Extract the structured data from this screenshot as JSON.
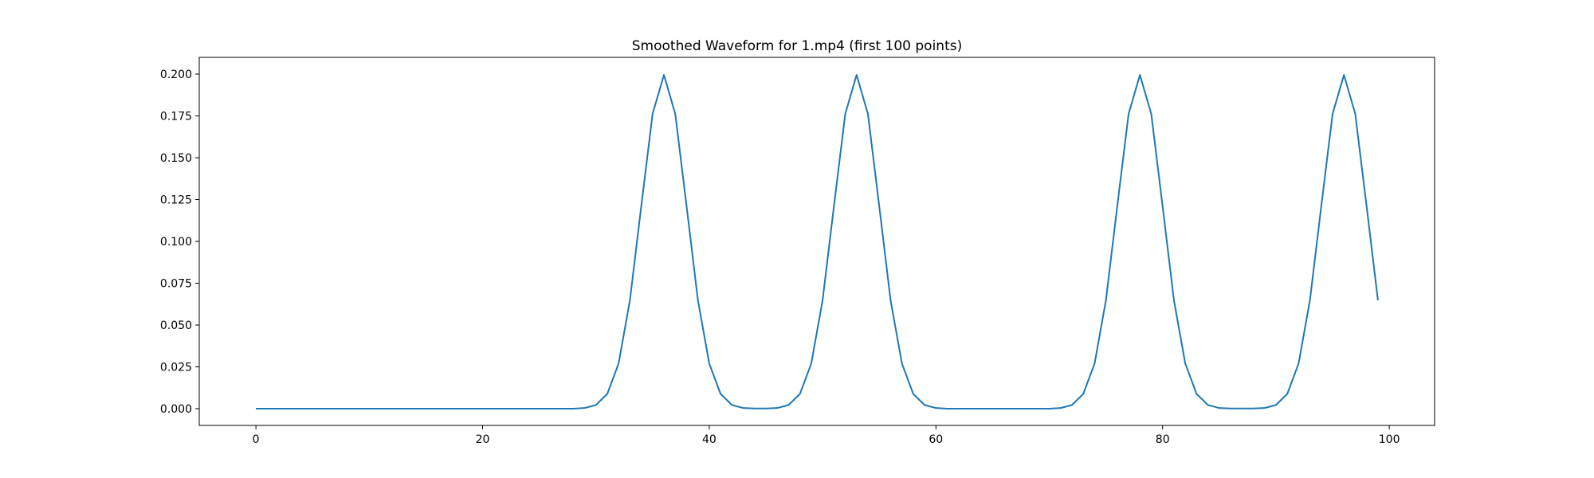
{
  "chart_data": {
    "type": "line",
    "title": "Smoothed Waveform for 1.mp4 (first 100 points)",
    "xlabel": "",
    "ylabel": "",
    "xlim": [
      -5,
      104
    ],
    "ylim": [
      -0.01,
      0.21
    ],
    "xticks": [
      0,
      20,
      40,
      60,
      80,
      100
    ],
    "xtick_labels": [
      "0",
      "20",
      "40",
      "60",
      "80",
      "100"
    ],
    "yticks": [
      0.0,
      0.025,
      0.05,
      0.075,
      0.1,
      0.125,
      0.15,
      0.175,
      0.2
    ],
    "ytick_labels": [
      "0.000",
      "0.025",
      "0.050",
      "0.075",
      "0.100",
      "0.125",
      "0.150",
      "0.175",
      "0.200"
    ],
    "grid": false,
    "series": [
      {
        "color": "#1f77b4",
        "x": [
          0,
          1,
          2,
          3,
          4,
          5,
          6,
          7,
          8,
          9,
          10,
          11,
          12,
          13,
          14,
          15,
          16,
          17,
          18,
          19,
          20,
          21,
          22,
          23,
          24,
          25,
          26,
          27,
          28,
          29,
          30,
          31,
          32,
          33,
          34,
          35,
          36,
          37,
          38,
          39,
          40,
          41,
          42,
          43,
          44,
          45,
          46,
          47,
          48,
          49,
          50,
          51,
          52,
          53,
          54,
          55,
          56,
          57,
          58,
          59,
          60,
          61,
          62,
          63,
          64,
          65,
          66,
          67,
          68,
          69,
          70,
          71,
          72,
          73,
          74,
          75,
          76,
          77,
          78,
          79,
          80,
          81,
          82,
          83,
          84,
          85,
          86,
          87,
          88,
          89,
          90,
          91,
          92,
          93,
          94,
          95,
          96,
          97,
          98,
          99
        ],
        "y": [
          0,
          0,
          0,
          0,
          0,
          0,
          0,
          0,
          0,
          0,
          0,
          0,
          0,
          0,
          0,
          0,
          0,
          0,
          0,
          0,
          0,
          0,
          0,
          0,
          0,
          0,
          0,
          0,
          0,
          0.0004,
          0.0022,
          0.0088,
          0.027,
          0.0648,
          0.121,
          0.1762,
          0.1995,
          0.1762,
          0.121,
          0.0648,
          0.027,
          0.0088,
          0.0022,
          0.0004,
          0.0001,
          0.0001,
          0.0004,
          0.0022,
          0.0088,
          0.027,
          0.0648,
          0.121,
          0.1762,
          0.1995,
          0.1762,
          0.121,
          0.0648,
          0.027,
          0.0088,
          0.0022,
          0.0004,
          0,
          0,
          0,
          0,
          0,
          0,
          0,
          0,
          0,
          0,
          0.0004,
          0.0022,
          0.0088,
          0.027,
          0.0648,
          0.121,
          0.1762,
          0.1995,
          0.1762,
          0.121,
          0.0648,
          0.027,
          0.0088,
          0.0022,
          0.0004,
          0.0001,
          0.0001,
          0.0001,
          0.0004,
          0.0022,
          0.0088,
          0.027,
          0.0648,
          0.121,
          0.1762,
          0.1995,
          0.1762,
          0.121,
          0.0648
        ]
      }
    ]
  }
}
